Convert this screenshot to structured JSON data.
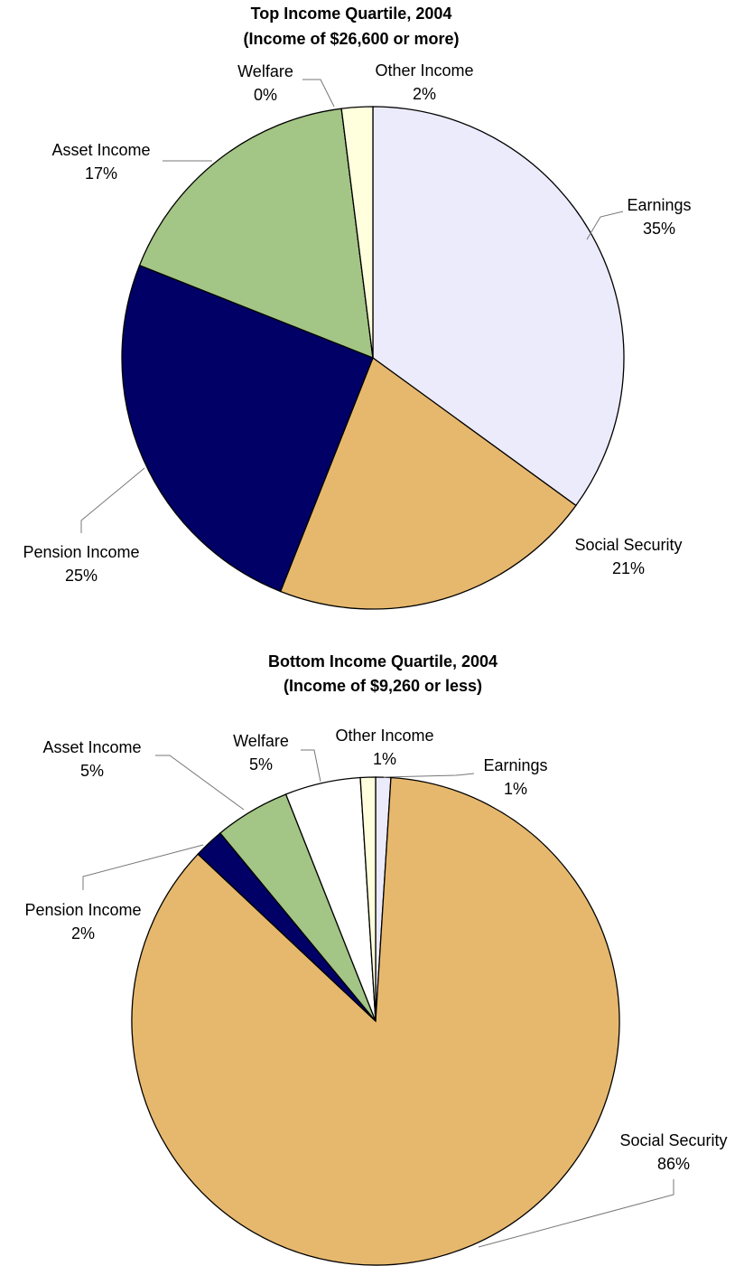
{
  "chart_data": [
    {
      "type": "pie",
      "title": "Top Income Quartile, 2004",
      "subtitle": "(Income of $26,600 or more)",
      "categories": [
        "Earnings",
        "Social Security",
        "Pension Income",
        "Asset Income",
        "Welfare",
        "Other Income"
      ],
      "values": [
        35,
        21,
        25,
        17,
        0,
        2
      ],
      "value_labels": [
        "35%",
        "21%",
        "25%",
        "17%",
        "0%",
        "2%"
      ],
      "colors": [
        "#ecebfc",
        "#e6b86e",
        "#000066",
        "#a3c585",
        "#ffffff",
        "#ffffdd"
      ]
    },
    {
      "type": "pie",
      "title": "Bottom Income Quartile, 2004",
      "subtitle": "(Income of $9,260 or less)",
      "categories": [
        "Earnings",
        "Social Security",
        "Pension Income",
        "Asset Income",
        "Welfare",
        "Other Income"
      ],
      "values": [
        1,
        86,
        2,
        5,
        5,
        1
      ],
      "value_labels": [
        "1%",
        "86%",
        "2%",
        "5%",
        "5%",
        "1%"
      ],
      "colors": [
        "#ecebfc",
        "#e6b86e",
        "#000066",
        "#a3c585",
        "#ffffff",
        "#ffffdd"
      ]
    }
  ]
}
